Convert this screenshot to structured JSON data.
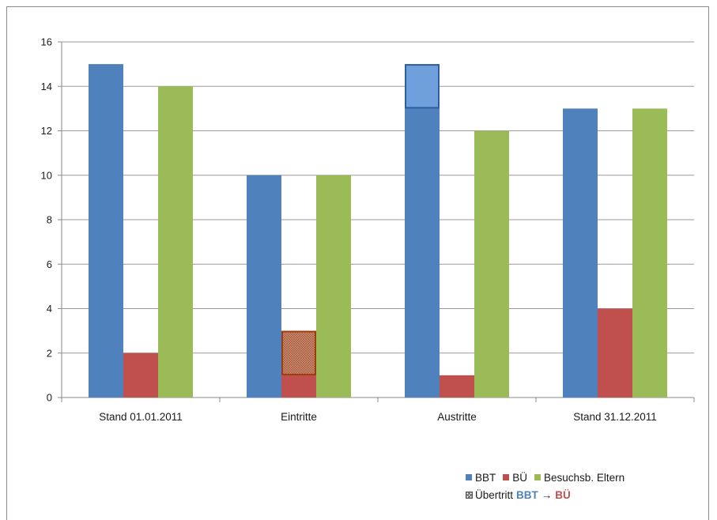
{
  "chart_data": {
    "type": "bar",
    "categories": [
      "Stand 01.01.2011",
      "Eintritte",
      "Austritte",
      "Stand 31.12.2011"
    ],
    "series": [
      {
        "name": "BBT",
        "values": [
          15,
          10,
          15,
          13
        ],
        "color": "#4f81bd"
      },
      {
        "name": "BÜ",
        "values": [
          2,
          3,
          1,
          4
        ],
        "color": "#c0504d"
      },
      {
        "name": "Besuchsb. Eltern",
        "values": [
          14,
          10,
          12,
          13
        ],
        "color": "#9bbb59"
      }
    ],
    "ylim": [
      0,
      16
    ],
    "yticks": [
      0,
      2,
      4,
      6,
      8,
      10,
      12,
      14,
      16
    ],
    "grid": true,
    "legend_position": "bottom-right",
    "transfer_overlays": [
      {
        "category": "Eintritte",
        "series": "BÜ",
        "from": 1,
        "to": 3,
        "fill": "#cd8c72",
        "border": "#9c3d0d"
      },
      {
        "category": "Austritte",
        "series": "BBT",
        "from": 13,
        "to": 15,
        "fill": "#6fa0dc",
        "border": "#2e5e9c"
      }
    ]
  },
  "legend": {
    "items": [
      {
        "label": "BBT",
        "color": "#4f81bd"
      },
      {
        "label": "BÜ",
        "color": "#c0504d"
      },
      {
        "label": "Besuchsb. Eltern",
        "color": "#9bbb59"
      }
    ],
    "transfer": {
      "prefix": "Übertritt",
      "from": "BBT",
      "arrow": "→",
      "to": "BÜ",
      "from_color": "#4f81bd",
      "to_color": "#c0504d"
    }
  }
}
